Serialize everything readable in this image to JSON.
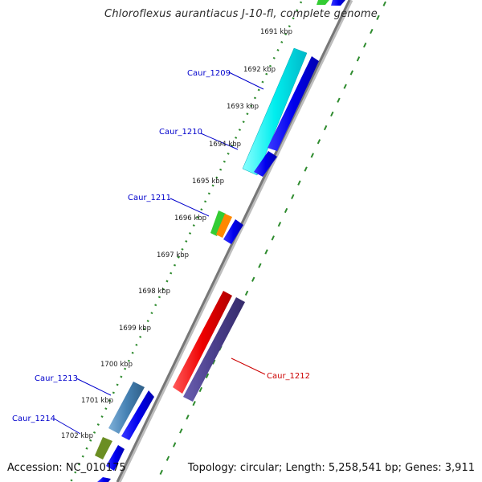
{
  "title": "Chloroflexus aurantiacus J-10-fl, complete genome",
  "accession": "Accession: NC_010175",
  "summary": "Topology: circular; Length: 5,258,541 bp; Genes: 3,911",
  "scale_labels": [
    "1691 kbp",
    "1692 kbp",
    "1693 kbp",
    "1694 kbp",
    "1695 kbp",
    "1696 kbp",
    "1697 kbp",
    "1698 kbp",
    "1699 kbp",
    "1700 kbp",
    "1701 kbp",
    "1702 kbp"
  ],
  "gene_labels": {
    "caur_1209": "Caur_1209",
    "caur_1210": "Caur_1210",
    "caur_1211": "Caur_1211",
    "caur_1212": "Caur_1212",
    "caur_1213": "Caur_1213",
    "caur_1214": "Caur_1214"
  },
  "colors": {
    "backbone": "#777777",
    "scale_dots": "#2e8b2e",
    "label_blue": "#0000cc",
    "label_red": "#cc0000",
    "forward_blue": "#0000ee",
    "cyan": "#00eeee",
    "green": "#33cc33",
    "orange": "#ff8800",
    "red": "#ee0000",
    "purple": "#4b3f8c",
    "steel_blue": "#4682b4",
    "olive": "#6b8e23"
  }
}
